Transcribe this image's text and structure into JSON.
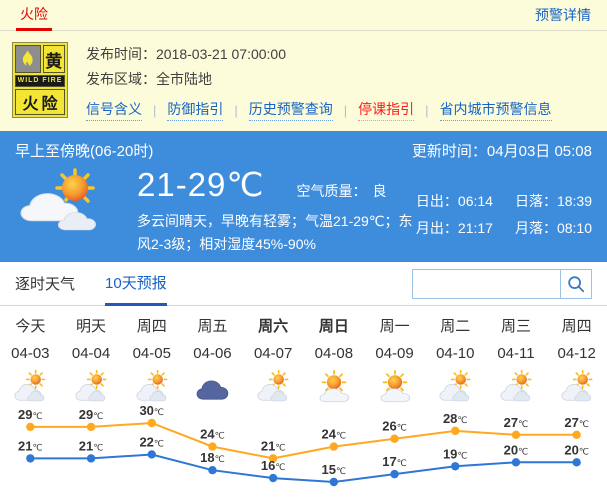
{
  "topbar": {
    "title": "火险",
    "detail_link": "预警详情"
  },
  "alert": {
    "badge": {
      "level": "黄",
      "band": "WILD FIRE",
      "type_char1": "火",
      "type_char2": "险"
    },
    "publish_time_label": "发布时间：",
    "publish_time": "2018-03-21 07:00:00",
    "publish_area_label": "发布区域：",
    "publish_area": "全市陆地",
    "links": [
      {
        "label": "信号含义",
        "style": "link"
      },
      {
        "label": "防御指引",
        "style": "link"
      },
      {
        "label": "历史预警查询",
        "style": "link"
      },
      {
        "label": "停课指引",
        "style": "alert"
      },
      {
        "label": "省内城市预警信息",
        "style": "link"
      }
    ]
  },
  "current": {
    "period": "早上至傍晚(06-20时)",
    "update_time": "更新时间：04月03日 05:08",
    "temp_range": "21-29℃",
    "air_quality_label": "空气质量：",
    "air_quality_value": "良",
    "description": "多云间晴天，早晚有轻雾；气温21-29℃；东风2-3级；相对湿度45%-90%",
    "sunrise_label": "日出：",
    "sunrise": "06:14",
    "sunset_label": "日落：",
    "sunset": "18:39",
    "moonrise_label": "月出：",
    "moonrise": "21:17",
    "moonset_label": "月落：",
    "moonset": "08:10"
  },
  "tabs": {
    "items": [
      {
        "label": "逐时天气",
        "active": false
      },
      {
        "label": "10天预报",
        "active": true
      }
    ],
    "search_value": ""
  },
  "forecast": {
    "days": [
      {
        "day": "今天",
        "date": "04-03",
        "icon": "partly-cloudy",
        "weekend": false
      },
      {
        "day": "明天",
        "date": "04-04",
        "icon": "partly-cloudy",
        "weekend": false
      },
      {
        "day": "周四",
        "date": "04-05",
        "icon": "partly-cloudy",
        "weekend": false
      },
      {
        "day": "周五",
        "date": "04-06",
        "icon": "overcast",
        "weekend": false
      },
      {
        "day": "周六",
        "date": "04-07",
        "icon": "partly-cloudy",
        "weekend": true
      },
      {
        "day": "周日",
        "date": "04-08",
        "icon": "mostly-sunny",
        "weekend": true
      },
      {
        "day": "周一",
        "date": "04-09",
        "icon": "mostly-sunny",
        "weekend": false
      },
      {
        "day": "周二",
        "date": "04-10",
        "icon": "partly-cloudy",
        "weekend": false
      },
      {
        "day": "周三",
        "date": "04-11",
        "icon": "partly-cloudy",
        "weekend": false
      },
      {
        "day": "周四",
        "date": "04-12",
        "icon": "partly-cloudy",
        "weekend": false
      }
    ]
  },
  "chart_data": {
    "type": "line",
    "categories": [
      "04-03",
      "04-04",
      "04-05",
      "04-06",
      "04-07",
      "04-08",
      "04-09",
      "04-10",
      "04-11",
      "04-12"
    ],
    "series": [
      {
        "name": "高温",
        "color": "#ffa820",
        "values": [
          29,
          29,
          30,
          24,
          21,
          24,
          26,
          28,
          27,
          27
        ]
      },
      {
        "name": "低温",
        "color": "#2e77d4",
        "values": [
          21,
          21,
          22,
          18,
          16,
          15,
          17,
          19,
          20,
          20
        ]
      }
    ],
    "unit": "℃",
    "ylim": [
      15,
      30
    ],
    "grid": false,
    "legend": "none"
  },
  "colors": {
    "panel_blue": "#3e8cdc",
    "accent_red": "#e60000",
    "link_blue": "#1863c6",
    "badge_yellow": "#f2e535",
    "high_line": "#ffa820",
    "low_line": "#2e77d4"
  }
}
